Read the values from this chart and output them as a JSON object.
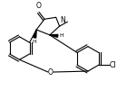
{
  "bg_color": "#ffffff",
  "line_color": "#000000",
  "lw": 0.8,
  "fig_width": 1.29,
  "fig_height": 1.0,
  "dpi": 100,
  "xlim": [
    0,
    129
  ],
  "ylim": [
    0,
    100
  ]
}
